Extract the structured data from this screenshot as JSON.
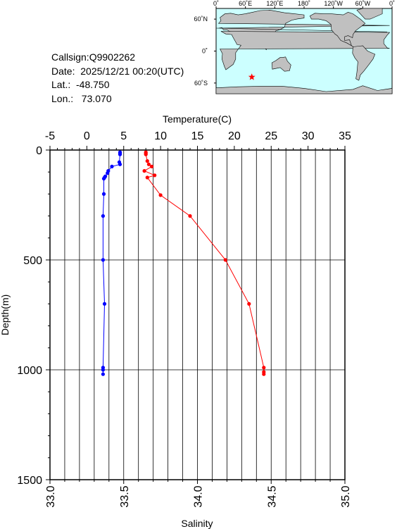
{
  "info": {
    "callsign": "Callsign:Q9902262",
    "date": "Date:  2025/12/21 00:20(UTC)",
    "lat": "Lat.:  -48.750",
    "lon": "Lon.:   73.070"
  },
  "map": {
    "lon_ticks": [
      "0˚",
      "60˚E",
      "120˚E",
      "180˚",
      "120˚W",
      "60˚W",
      "0˚"
    ],
    "lat_ticks": [
      "60˚N",
      "0˚",
      "60˚S"
    ],
    "marker": {
      "lon": 73.07,
      "lat": -48.75,
      "color": "#ff0000"
    },
    "ocean_color": "#ccffff",
    "land_color": "#c0c0c0"
  },
  "chart_data": {
    "type": "line",
    "top_axis_label": "Temperature(C)",
    "bottom_axis_label": "Salinity",
    "ylabel": "Depth(m)",
    "temp_range": [
      -5,
      35
    ],
    "temp_ticks": [
      "-5",
      "0",
      "5",
      "10",
      "15",
      "20",
      "25",
      "30",
      "35"
    ],
    "sal_range": [
      33.0,
      35.0
    ],
    "sal_ticks": [
      "33.0",
      "33.5",
      "34.0",
      "34.5",
      "35.0"
    ],
    "depth_range": [
      0,
      1500
    ],
    "depth_ticks": [
      "0",
      "500",
      "1000",
      "1500"
    ],
    "grid": true,
    "series": [
      {
        "color": "#ff0000",
        "axis": "bottom",
        "points": [
          [
            33.65,
            10
          ],
          [
            33.65,
            15
          ],
          [
            33.65,
            20
          ],
          [
            33.66,
            50
          ],
          [
            33.67,
            65
          ],
          [
            33.69,
            75
          ],
          [
            33.64,
            95
          ],
          [
            33.71,
            115
          ],
          [
            33.66,
            125
          ],
          [
            33.75,
            205
          ],
          [
            33.95,
            300
          ],
          [
            34.19,
            500
          ],
          [
            34.35,
            700
          ],
          [
            34.45,
            990
          ],
          [
            34.45,
            1010
          ],
          [
            34.45,
            1020
          ]
        ]
      },
      {
        "color": "#0000ff",
        "axis": "top",
        "points": [
          [
            4.5,
            10
          ],
          [
            4.5,
            15
          ],
          [
            4.5,
            20
          ],
          [
            4.4,
            55
          ],
          [
            4.5,
            65
          ],
          [
            3.4,
            75
          ],
          [
            2.9,
            95
          ],
          [
            2.8,
            105
          ],
          [
            2.5,
            120
          ],
          [
            2.4,
            125
          ],
          [
            2.3,
            130
          ],
          [
            2.3,
            200
          ],
          [
            2.2,
            300
          ],
          [
            2.2,
            500
          ],
          [
            2.4,
            700
          ],
          [
            2.2,
            990
          ],
          [
            2.2,
            1000
          ],
          [
            2.2,
            1020
          ]
        ]
      }
    ]
  }
}
